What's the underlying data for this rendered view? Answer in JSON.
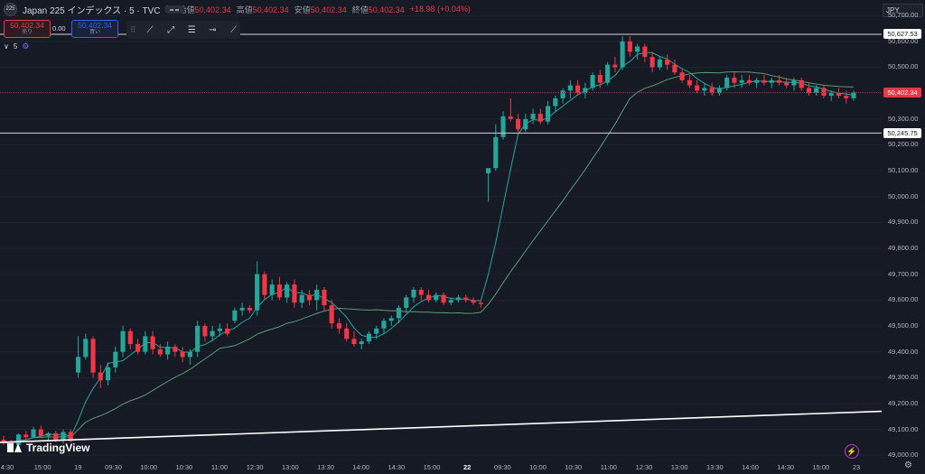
{
  "header": {
    "logo_text": "225",
    "title": "Japan 225 インデックス · 5 · TVC",
    "ohlc": [
      {
        "label": "始値",
        "value": "50,402.34"
      },
      {
        "label": "高値",
        "value": "50,402.34"
      },
      {
        "label": "安値",
        "value": "50,402.34"
      },
      {
        "label": "終値",
        "value": "50,402.34"
      },
      {
        "label": "",
        "value": "+18.98 (+0.04%)"
      }
    ]
  },
  "trade": {
    "sell_value": "50,402.34",
    "sell_label": "売り",
    "spread": "0.00",
    "buy_value": "50,402.34",
    "buy_label": "買い"
  },
  "indicator": {
    "label": "5",
    "toggle": "∨"
  },
  "currency": "JPY",
  "price_tags": [
    {
      "value": "50,627.53",
      "price": 50627.53,
      "style": "white"
    },
    {
      "value": "50,402.34",
      "price": 50402.34,
      "style": "red"
    },
    {
      "value": "50,245.75",
      "price": 50245.75,
      "style": "white"
    }
  ],
  "y_axis": [
    "50,700.00",
    "50,600.00",
    "50,500.00",
    "50,400.00",
    "50,300.00",
    "50,200.00",
    "50,100.00",
    "50,000.00",
    "49,900.00",
    "49,800.00",
    "49,700.00",
    "49,600.00",
    "49,500.00",
    "49,400.00",
    "49,300.00",
    "49,200.00",
    "49,100.00",
    "49,000.00"
  ],
  "x_axis": [
    {
      "label": "4:30",
      "bold": false
    },
    {
      "label": "15:00",
      "bold": false
    },
    {
      "label": "19",
      "bold": false
    },
    {
      "label": "09:30",
      "bold": false
    },
    {
      "label": "10:00",
      "bold": false
    },
    {
      "label": "10:30",
      "bold": false
    },
    {
      "label": "11:00",
      "bold": false
    },
    {
      "label": "12:30",
      "bold": false
    },
    {
      "label": "13:00",
      "bold": false
    },
    {
      "label": "13:30",
      "bold": false
    },
    {
      "label": "14:00",
      "bold": false
    },
    {
      "label": "14:30",
      "bold": false
    },
    {
      "label": "15:00",
      "bold": false
    },
    {
      "label": "22",
      "bold": true
    },
    {
      "label": "09:30",
      "bold": false
    },
    {
      "label": "10:00",
      "bold": false
    },
    {
      "label": "10:30",
      "bold": false
    },
    {
      "label": "11:00",
      "bold": false
    },
    {
      "label": "12:30",
      "bold": false
    },
    {
      "label": "13:00",
      "bold": false
    },
    {
      "label": "13:30",
      "bold": false
    },
    {
      "label": "14:00",
      "bold": false
    },
    {
      "label": "14:30",
      "bold": false
    },
    {
      "label": "15:00",
      "bold": false
    },
    {
      "label": "23",
      "bold": false
    }
  ],
  "branding": "TradingView",
  "colors": {
    "up": "#26a69a",
    "down": "#f23645",
    "ma_fast": "#26a69a",
    "ma_slow": "#5b9b6f",
    "background": "#161a25"
  },
  "chart_data": {
    "type": "candlestick",
    "ylim": [
      48980,
      50760
    ],
    "candles": [
      {
        "o": 49060,
        "h": 49075,
        "l": 49040,
        "c": 49050
      },
      {
        "o": 49050,
        "h": 49060,
        "l": 49030,
        "c": 49040
      },
      {
        "o": 49040,
        "h": 49085,
        "l": 49035,
        "c": 49080
      },
      {
        "o": 49080,
        "h": 49095,
        "l": 49060,
        "c": 49070
      },
      {
        "o": 49070,
        "h": 49110,
        "l": 49065,
        "c": 49100
      },
      {
        "o": 49100,
        "h": 49115,
        "l": 49070,
        "c": 49075
      },
      {
        "o": 49075,
        "h": 49090,
        "l": 49060,
        "c": 49085
      },
      {
        "o": 49085,
        "h": 49095,
        "l": 49050,
        "c": 49060
      },
      {
        "o": 49060,
        "h": 49100,
        "l": 49045,
        "c": 49090
      },
      {
        "o": 49090,
        "h": 49100,
        "l": 49050,
        "c": 49055
      },
      {
        "o": 49320,
        "h": 49460,
        "l": 49300,
        "c": 49380
      },
      {
        "o": 49380,
        "h": 49470,
        "l": 49370,
        "c": 49450
      },
      {
        "o": 49450,
        "h": 49460,
        "l": 49300,
        "c": 49320
      },
      {
        "o": 49320,
        "h": 49350,
        "l": 49260,
        "c": 49290
      },
      {
        "o": 49290,
        "h": 49360,
        "l": 49270,
        "c": 49340
      },
      {
        "o": 49340,
        "h": 49420,
        "l": 49320,
        "c": 49400
      },
      {
        "o": 49400,
        "h": 49500,
        "l": 49380,
        "c": 49480
      },
      {
        "o": 49480,
        "h": 49490,
        "l": 49410,
        "c": 49430
      },
      {
        "o": 49430,
        "h": 49450,
        "l": 49390,
        "c": 49400
      },
      {
        "o": 49400,
        "h": 49480,
        "l": 49390,
        "c": 49460
      },
      {
        "o": 49460,
        "h": 49480,
        "l": 49390,
        "c": 49410
      },
      {
        "o": 49410,
        "h": 49430,
        "l": 49380,
        "c": 49390
      },
      {
        "o": 49390,
        "h": 49440,
        "l": 49370,
        "c": 49420
      },
      {
        "o": 49420,
        "h": 49430,
        "l": 49380,
        "c": 49400
      },
      {
        "o": 49400,
        "h": 49420,
        "l": 49360,
        "c": 49380
      },
      {
        "o": 49380,
        "h": 49410,
        "l": 49350,
        "c": 49400
      },
      {
        "o": 49400,
        "h": 49520,
        "l": 49380,
        "c": 49500
      },
      {
        "o": 49500,
        "h": 49510,
        "l": 49440,
        "c": 49460
      },
      {
        "o": 49460,
        "h": 49500,
        "l": 49440,
        "c": 49480
      },
      {
        "o": 49480,
        "h": 49510,
        "l": 49460,
        "c": 49490
      },
      {
        "o": 49490,
        "h": 49510,
        "l": 49460,
        "c": 49470
      },
      {
        "o": 49520,
        "h": 49570,
        "l": 49510,
        "c": 49560
      },
      {
        "o": 49560,
        "h": 49590,
        "l": 49540,
        "c": 49570
      },
      {
        "o": 49570,
        "h": 49580,
        "l": 49550,
        "c": 49560
      },
      {
        "o": 49560,
        "h": 49750,
        "l": 49540,
        "c": 49700
      },
      {
        "o": 49700,
        "h": 49710,
        "l": 49600,
        "c": 49620
      },
      {
        "o": 49620,
        "h": 49680,
        "l": 49600,
        "c": 49660
      },
      {
        "o": 49660,
        "h": 49690,
        "l": 49600,
        "c": 49610
      },
      {
        "o": 49610,
        "h": 49670,
        "l": 49590,
        "c": 49660
      },
      {
        "o": 49660,
        "h": 49680,
        "l": 49570,
        "c": 49590
      },
      {
        "o": 49590,
        "h": 49640,
        "l": 49570,
        "c": 49620
      },
      {
        "o": 49620,
        "h": 49640,
        "l": 49580,
        "c": 49600
      },
      {
        "o": 49600,
        "h": 49660,
        "l": 49560,
        "c": 49640
      },
      {
        "o": 49640,
        "h": 49650,
        "l": 49560,
        "c": 49580
      },
      {
        "o": 49580,
        "h": 49600,
        "l": 49490,
        "c": 49510
      },
      {
        "o": 49510,
        "h": 49530,
        "l": 49470,
        "c": 49490
      },
      {
        "o": 49490,
        "h": 49510,
        "l": 49440,
        "c": 49450
      },
      {
        "o": 49450,
        "h": 49480,
        "l": 49420,
        "c": 49430
      },
      {
        "o": 49430,
        "h": 49450,
        "l": 49410,
        "c": 49440
      },
      {
        "o": 49440,
        "h": 49480,
        "l": 49430,
        "c": 49470
      },
      {
        "o": 49470,
        "h": 49500,
        "l": 49450,
        "c": 49490
      },
      {
        "o": 49490,
        "h": 49530,
        "l": 49470,
        "c": 49520
      },
      {
        "o": 49520,
        "h": 49540,
        "l": 49500,
        "c": 49530
      },
      {
        "o": 49530,
        "h": 49580,
        "l": 49510,
        "c": 49570
      },
      {
        "o": 49570,
        "h": 49620,
        "l": 49550,
        "c": 49610
      },
      {
        "o": 49610,
        "h": 49650,
        "l": 49590,
        "c": 49640
      },
      {
        "o": 49640,
        "h": 49650,
        "l": 49600,
        "c": 49620
      },
      {
        "o": 49620,
        "h": 49640,
        "l": 49590,
        "c": 49600
      },
      {
        "o": 49600,
        "h": 49630,
        "l": 49590,
        "c": 49620
      },
      {
        "o": 49620,
        "h": 49630,
        "l": 49580,
        "c": 49590
      },
      {
        "o": 49590,
        "h": 49610,
        "l": 49580,
        "c": 49600
      },
      {
        "o": 49600,
        "h": 49620,
        "l": 49590,
        "c": 49610
      },
      {
        "o": 49610,
        "h": 49620,
        "l": 49590,
        "c": 49600
      },
      {
        "o": 49600,
        "h": 49610,
        "l": 49580,
        "c": 49590
      },
      {
        "o": 49590,
        "h": 49600,
        "l": 49570,
        "c": 49585
      },
      {
        "o": 50090,
        "h": 50100,
        "l": 49980,
        "c": 50110
      },
      {
        "o": 50110,
        "h": 50280,
        "l": 50100,
        "c": 50230
      },
      {
        "o": 50230,
        "h": 50330,
        "l": 50220,
        "c": 50310
      },
      {
        "o": 50310,
        "h": 50380,
        "l": 50290,
        "c": 50300
      },
      {
        "o": 50300,
        "h": 50320,
        "l": 50250,
        "c": 50260
      },
      {
        "o": 50260,
        "h": 50320,
        "l": 50250,
        "c": 50300
      },
      {
        "o": 50300,
        "h": 50340,
        "l": 50280,
        "c": 50320
      },
      {
        "o": 50320,
        "h": 50340,
        "l": 50280,
        "c": 50290
      },
      {
        "o": 50290,
        "h": 50370,
        "l": 50280,
        "c": 50350
      },
      {
        "o": 50350,
        "h": 50390,
        "l": 50330,
        "c": 50380
      },
      {
        "o": 50380,
        "h": 50420,
        "l": 50360,
        "c": 50410
      },
      {
        "o": 50410,
        "h": 50450,
        "l": 50380,
        "c": 50430
      },
      {
        "o": 50430,
        "h": 50450,
        "l": 50390,
        "c": 50400
      },
      {
        "o": 50400,
        "h": 50440,
        "l": 50380,
        "c": 50420
      },
      {
        "o": 50420,
        "h": 50480,
        "l": 50410,
        "c": 50470
      },
      {
        "o": 50470,
        "h": 50490,
        "l": 50420,
        "c": 50440
      },
      {
        "o": 50440,
        "h": 50520,
        "l": 50430,
        "c": 50510
      },
      {
        "o": 50510,
        "h": 50540,
        "l": 50480,
        "c": 50500
      },
      {
        "o": 50500,
        "h": 50620,
        "l": 50490,
        "c": 50600
      },
      {
        "o": 50600,
        "h": 50620,
        "l": 50540,
        "c": 50560
      },
      {
        "o": 50560,
        "h": 50590,
        "l": 50530,
        "c": 50580
      },
      {
        "o": 50580,
        "h": 50590,
        "l": 50520,
        "c": 50540
      },
      {
        "o": 50540,
        "h": 50560,
        "l": 50480,
        "c": 50500
      },
      {
        "o": 50500,
        "h": 50540,
        "l": 50490,
        "c": 50530
      },
      {
        "o": 50530,
        "h": 50550,
        "l": 50490,
        "c": 50510
      },
      {
        "o": 50510,
        "h": 50530,
        "l": 50470,
        "c": 50480
      },
      {
        "o": 50480,
        "h": 50490,
        "l": 50440,
        "c": 50450
      },
      {
        "o": 50450,
        "h": 50470,
        "l": 50420,
        "c": 50430
      },
      {
        "o": 50430,
        "h": 50450,
        "l": 50400,
        "c": 50410
      },
      {
        "o": 50410,
        "h": 50440,
        "l": 50390,
        "c": 50420
      },
      {
        "o": 50420,
        "h": 50440,
        "l": 50390,
        "c": 50400
      },
      {
        "o": 50400,
        "h": 50430,
        "l": 50390,
        "c": 50420
      },
      {
        "o": 50420,
        "h": 50470,
        "l": 50410,
        "c": 50460
      },
      {
        "o": 50460,
        "h": 50480,
        "l": 50420,
        "c": 50440
      },
      {
        "o": 50440,
        "h": 50470,
        "l": 50420,
        "c": 50450
      },
      {
        "o": 50450,
        "h": 50470,
        "l": 50430,
        "c": 50440
      },
      {
        "o": 50440,
        "h": 50460,
        "l": 50420,
        "c": 50450
      },
      {
        "o": 50450,
        "h": 50470,
        "l": 50430,
        "c": 50440
      },
      {
        "o": 50440,
        "h": 50460,
        "l": 50420,
        "c": 50450
      },
      {
        "o": 50450,
        "h": 50470,
        "l": 50430,
        "c": 50440
      },
      {
        "o": 50440,
        "h": 50460,
        "l": 50420,
        "c": 50430
      },
      {
        "o": 50430,
        "h": 50460,
        "l": 50410,
        "c": 50450
      },
      {
        "o": 50450,
        "h": 50460,
        "l": 50410,
        "c": 50420
      },
      {
        "o": 50420,
        "h": 50440,
        "l": 50390,
        "c": 50400
      },
      {
        "o": 50400,
        "h": 50430,
        "l": 50390,
        "c": 50420
      },
      {
        "o": 50420,
        "h": 50430,
        "l": 50380,
        "c": 50390
      },
      {
        "o": 50390,
        "h": 50410,
        "l": 50370,
        "c": 50400
      },
      {
        "o": 50400,
        "h": 50420,
        "l": 50380,
        "c": 50390
      },
      {
        "o": 50390,
        "h": 50410,
        "l": 50360,
        "c": 50380
      },
      {
        "o": 50380,
        "h": 50410,
        "l": 50370,
        "c": 50402
      }
    ],
    "hlines": [
      50627.53,
      50402.34,
      50245.75
    ],
    "trendline": [
      [
        49050,
        0
      ],
      [
        49170,
        1
      ]
    ]
  }
}
